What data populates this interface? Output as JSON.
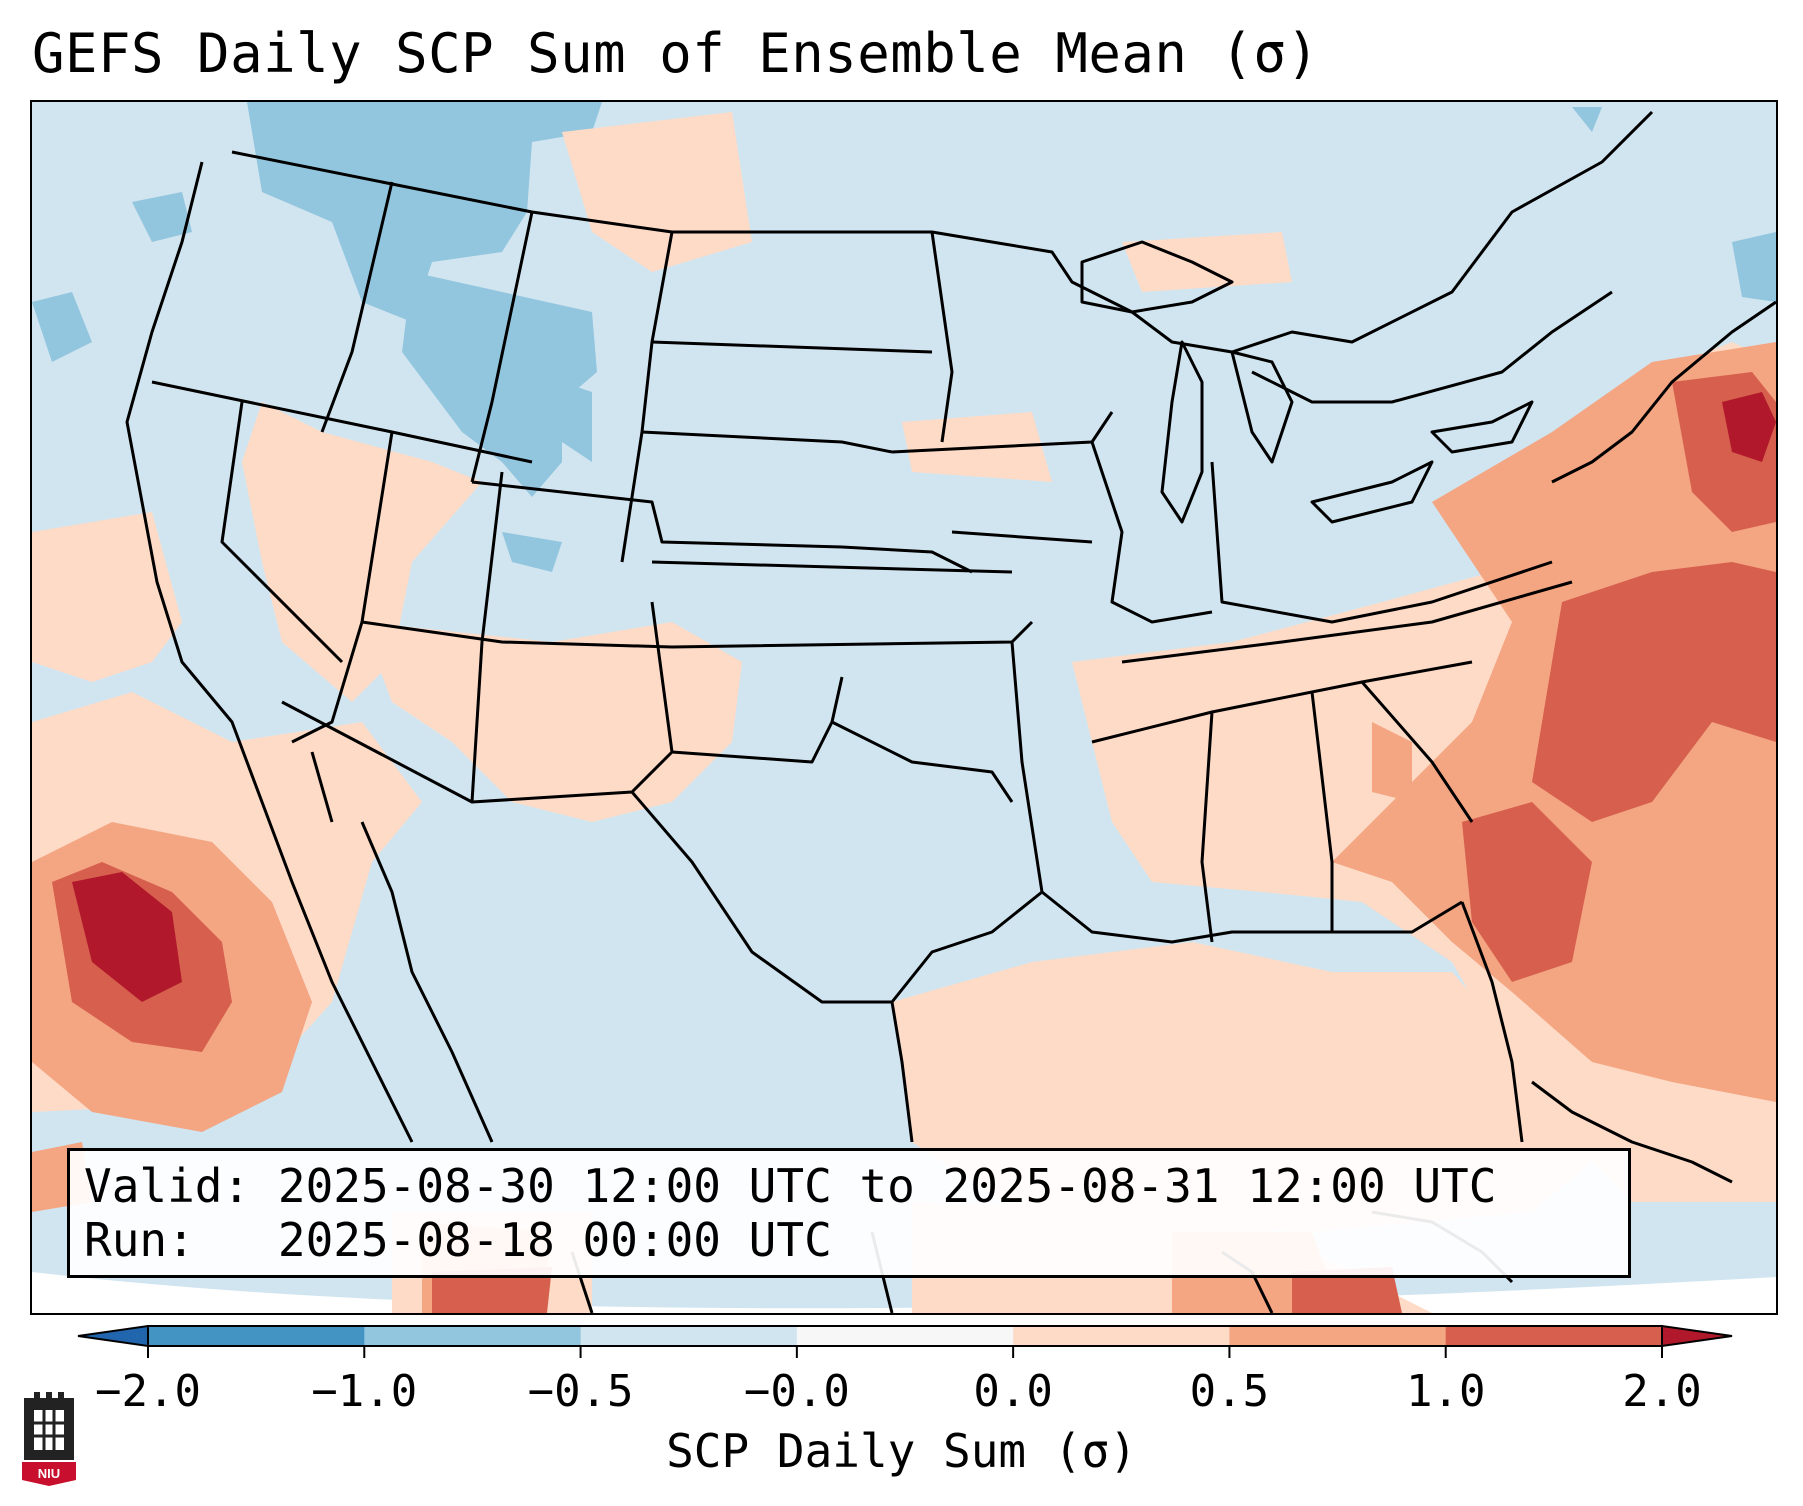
{
  "title": "GEFS Daily SCP Sum of Ensemble Mean (σ)",
  "info": {
    "valid_label": "Valid:",
    "valid_text": "2025-08-30 12:00 UTC to 2025-08-31 12:00 UTC",
    "run_label": "Run:",
    "run_text": "2025-08-18 00:00 UTC"
  },
  "colorbar": {
    "label": "SCP Daily Sum (σ)",
    "ticks": [
      "−2.0",
      "−1.0",
      "−0.5",
      "−0.0",
      "0.0",
      "0.5",
      "1.0",
      "2.0"
    ],
    "bins": [
      {
        "range": "−2.0 to −1.0",
        "color": "#4393c3"
      },
      {
        "range": "−1.0 to −0.5",
        "color": "#92c5de"
      },
      {
        "range": "−0.5 to −0.0",
        "color": "#d1e5f0"
      },
      {
        "range": "−0.0 to 0.0",
        "color": "#f7f7f7"
      },
      {
        "range": "0.0 to 0.5",
        "color": "#fddbc7"
      },
      {
        "range": "0.5 to 1.0",
        "color": "#f4a582"
      },
      {
        "range": "1.0 to 2.0",
        "color": "#d6604d"
      }
    ],
    "under_color": "#2166ac",
    "over_color": "#b2182b"
  },
  "logo": {
    "text": "NIU",
    "color": "#c8102e"
  }
}
